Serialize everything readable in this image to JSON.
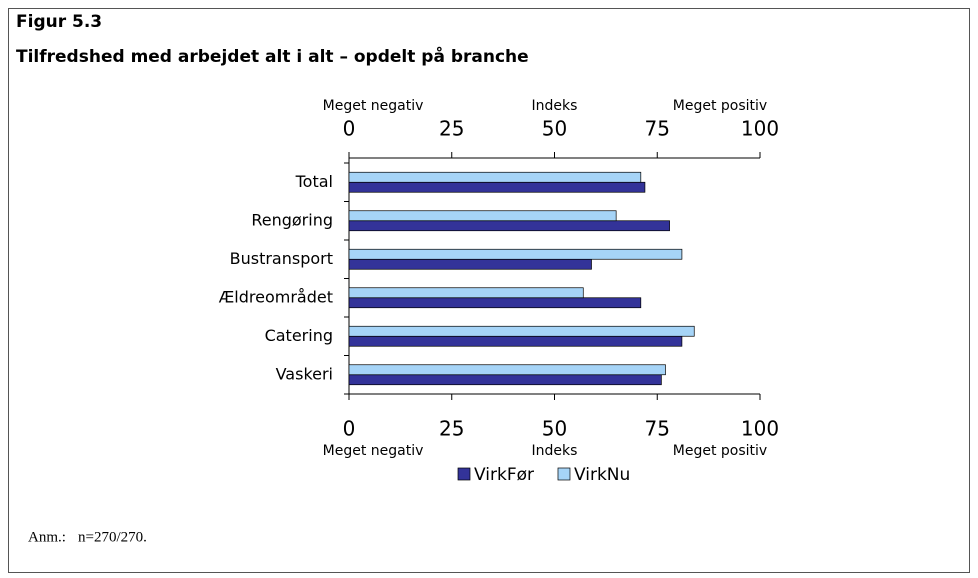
{
  "chart_data": {
    "type": "bar",
    "orientation": "horizontal",
    "title": "Figur 5.3",
    "subtitle": "Tilfredshed med arbejdet alt i alt – opdelt på branche",
    "axis_labels": [
      "Meget negativ",
      "Indeks",
      "Meget positiv"
    ],
    "categories": [
      "Total",
      "Rengøring",
      "Bustransport",
      "Ældreområdet",
      "Catering",
      "Vaskeri"
    ],
    "series": [
      {
        "name": "VirkFør",
        "color": "#333399",
        "values": [
          72,
          78,
          59,
          71,
          81,
          76
        ]
      },
      {
        "name": "VirkNu",
        "color": "#a6d4f7",
        "values": [
          71,
          65,
          81,
          57,
          84,
          77
        ]
      }
    ],
    "xlim": [
      0,
      100
    ],
    "xticks": [
      0,
      25,
      50,
      75,
      100
    ],
    "note_label": "Anm.:",
    "note": "n=270/270."
  }
}
